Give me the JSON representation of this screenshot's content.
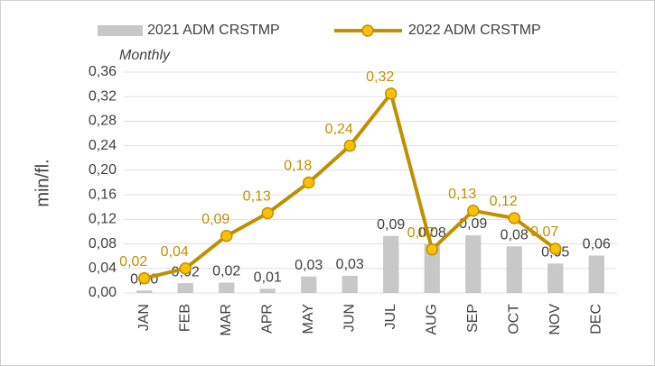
{
  "chart_data": {
    "type": "bar_line",
    "subtitle": "Monthly",
    "y_label": "min/fl.",
    "categories": [
      "JAN",
      "FEB",
      "MAR",
      "APR",
      "MAY",
      "JUN",
      "JUL",
      "AUG",
      "SEP",
      "OCT",
      "NOV",
      "DEC"
    ],
    "series": [
      {
        "name": "2021 ADM CRSTMP",
        "type": "bar",
        "color": "#c8c8c8",
        "label_color": "#404040",
        "values": [
          0.004,
          0.016,
          0.017,
          0.007,
          0.027,
          0.028,
          0.093,
          0.08,
          0.094,
          0.076,
          0.048,
          0.061
        ],
        "value_labels": [
          "0,00",
          "0,02",
          "0,02",
          "0,01",
          "0,03",
          "0,03",
          "0,09",
          "0,08",
          "0,09",
          "0,08",
          "0,05",
          "0,06"
        ]
      },
      {
        "name": "2022 ADM CRSTMP",
        "type": "line",
        "color": "#bf9000",
        "marker_color": "#ffc000",
        "label_color": "#bf9000",
        "values": [
          0.024,
          0.04,
          0.093,
          0.13,
          0.18,
          0.24,
          0.325,
          0.071,
          0.134,
          0.122,
          0.072,
          null
        ],
        "value_labels": [
          "0,02",
          "0,04",
          "0,09",
          "0,13",
          "0,18",
          "0,24",
          "0,32",
          "0,07",
          "0,13",
          "0,12",
          "0,07",
          null
        ]
      }
    ],
    "ylim": [
      0,
      0.36
    ],
    "yticks": [
      {
        "value": 0,
        "label": "0,00"
      },
      {
        "value": 0.04,
        "label": "0,04"
      },
      {
        "value": 0.08,
        "label": "0,08"
      },
      {
        "value": 0.12,
        "label": "0,12"
      },
      {
        "value": 0.16,
        "label": "0,16"
      },
      {
        "value": 0.2,
        "label": "0,20"
      },
      {
        "value": 0.24,
        "label": "0,24"
      },
      {
        "value": 0.28,
        "label": "0,28"
      },
      {
        "value": 0.32,
        "label": "0,32"
      },
      {
        "value": 0.36,
        "label": "0,36"
      }
    ],
    "grid": true
  }
}
